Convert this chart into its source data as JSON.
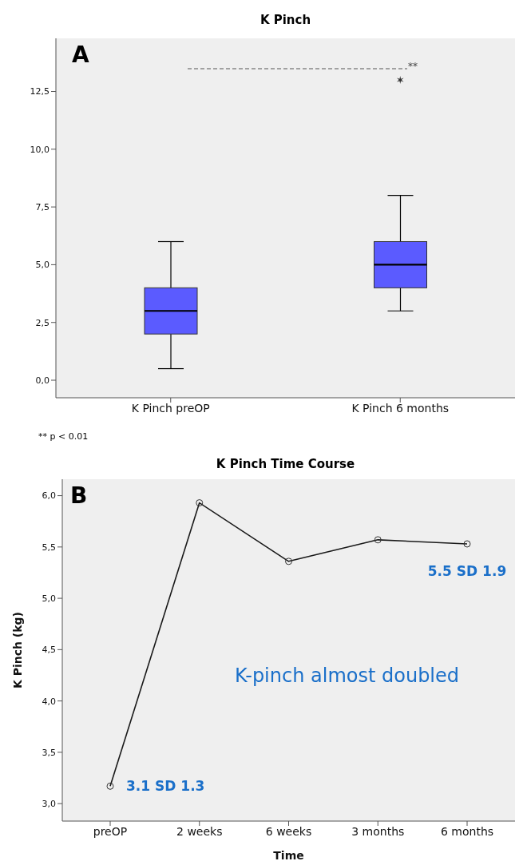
{
  "chart_data": [
    {
      "type": "box",
      "title": "K Pinch",
      "categories": [
        "K Pinch preOP",
        "K Pinch 6 months"
      ],
      "color": "#5b5bff",
      "boxes": [
        {
          "low": 0.5,
          "q1": 2,
          "median": 3,
          "q3": 4,
          "high": 6
        },
        {
          "low": 3,
          "q1": 4,
          "median": 5,
          "q3": 6,
          "high": 8,
          "outliers": [
            13
          ]
        }
      ],
      "ylim": [
        -0.76,
        14.8
      ],
      "yticks": [
        {
          "value": 0,
          "label": "0,0"
        },
        {
          "value": 2.5,
          "label": "2,5"
        },
        {
          "value": 5,
          "label": "5,0"
        },
        {
          "value": 7.5,
          "label": "7,5"
        },
        {
          "value": 10,
          "label": "10,0"
        },
        {
          "value": 12.5,
          "label": "12,5"
        }
      ],
      "annotations": [
        "A",
        "**",
        "** p < 0.01"
      ]
    },
    {
      "type": "line",
      "title": "K Pinch Time Course",
      "xlabel": "Time",
      "ylabel": "K Pinch (kg)",
      "categories": [
        "preOP",
        "2 weeks",
        "6 weeks",
        "3 months",
        "6 months"
      ],
      "values": [
        3.17,
        5.93,
        5.36,
        5.57,
        5.53
      ],
      "color": "#1a1a1a",
      "marker": "circle",
      "ylim": [
        2.83,
        6.16
      ],
      "yticks": [
        {
          "value": 3,
          "label": "3,0"
        },
        {
          "value": 3.5,
          "label": "3,5"
        },
        {
          "value": 4,
          "label": "4,0"
        },
        {
          "value": 4.5,
          "label": "4,5"
        },
        {
          "value": 5,
          "label": "5,0"
        },
        {
          "value": 5.5,
          "label": "5,5"
        },
        {
          "value": 6,
          "label": "6,0"
        }
      ],
      "annotations": [
        "B",
        {
          "text": "3.1 SD 1.3",
          "x": "preOP",
          "y": 3.17
        },
        {
          "text": "5.5 SD 1.9",
          "x": "6 months",
          "y": 5.53
        },
        "K-pinch almost doubled"
      ]
    }
  ]
}
